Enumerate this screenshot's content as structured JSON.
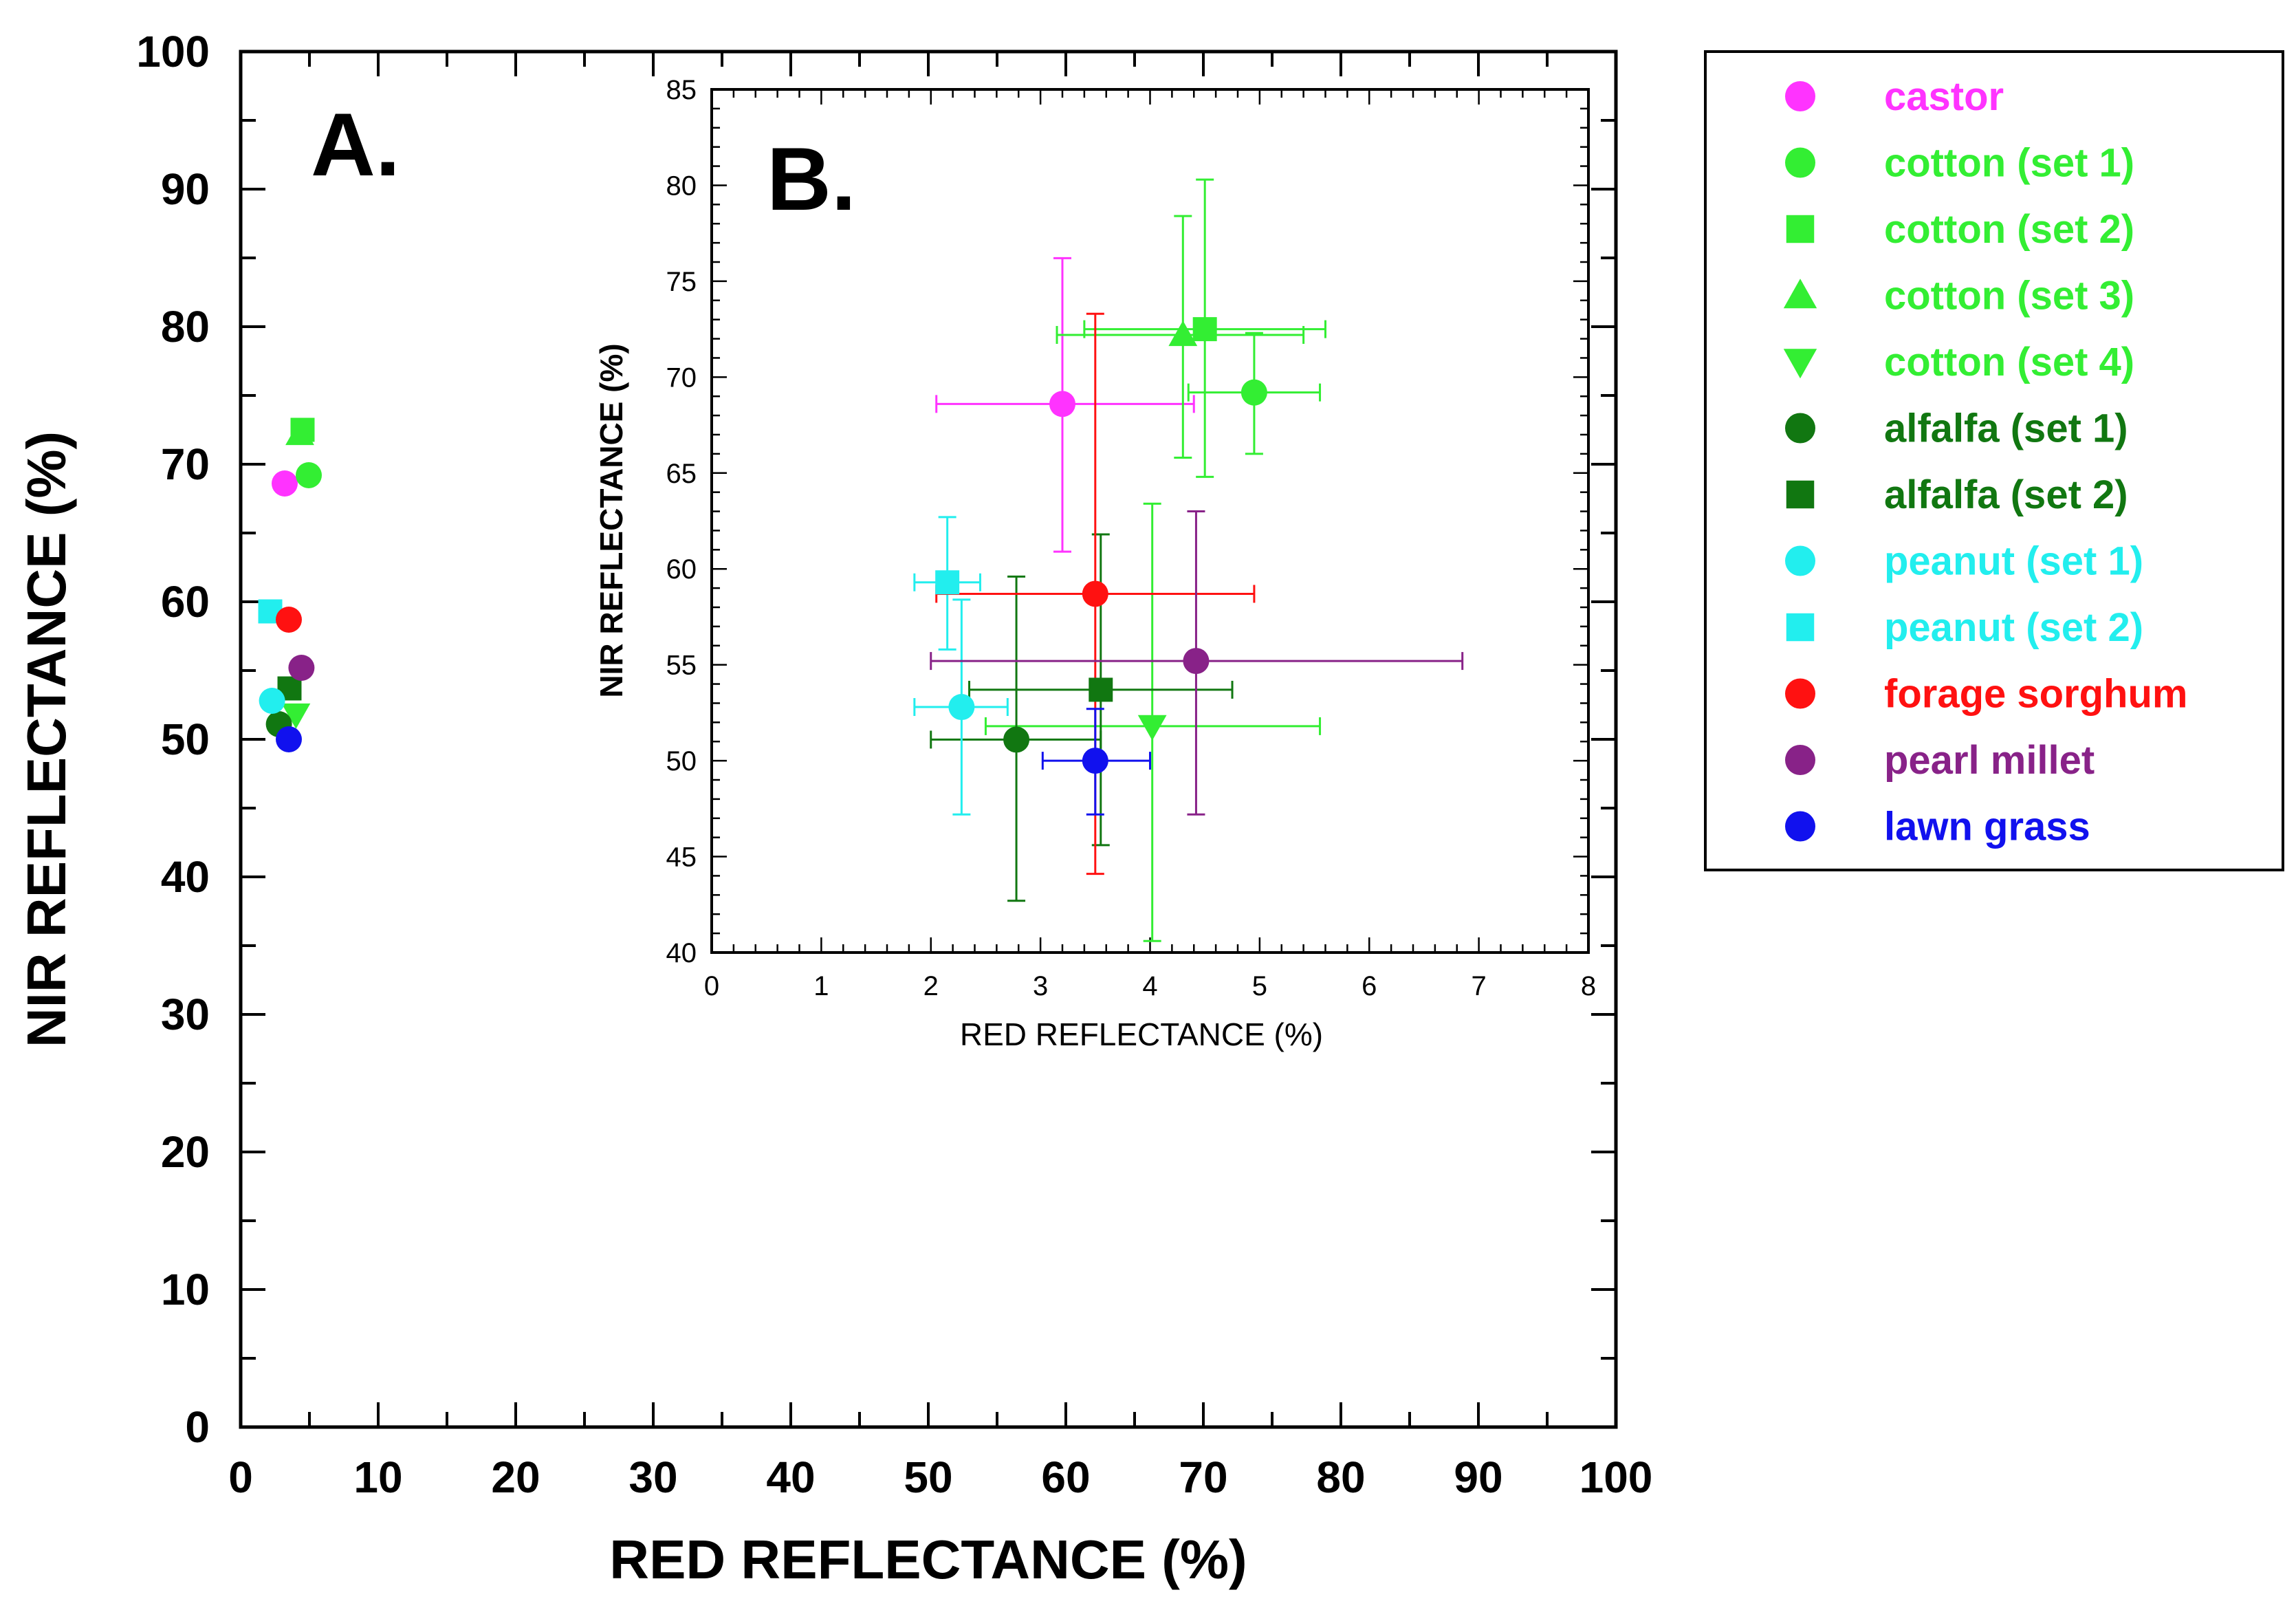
{
  "chart_data": [
    {
      "type": "scatter",
      "panel": "A.",
      "xlabel": "RED REFLECTANCE (%)",
      "ylabel": "NIR REFLECTANCE (%)",
      "xlim": [
        0,
        100
      ],
      "ylim": [
        0,
        100
      ],
      "xticks": [
        "0",
        "10",
        "20",
        "30",
        "40",
        "50",
        "60",
        "70",
        "80",
        "90",
        "100"
      ],
      "yticks": [
        "0",
        "10",
        "20",
        "30",
        "40",
        "50",
        "60",
        "70",
        "80",
        "90",
        "100"
      ]
    },
    {
      "type": "scatter",
      "panel": "B.",
      "xlabel": "RED REFLECTANCE (%)",
      "ylabel": "NIR REFLECTANCE (%)",
      "xlim": [
        0,
        8
      ],
      "ylim": [
        40,
        85
      ],
      "xticks": [
        "0",
        "1",
        "2",
        "3",
        "4",
        "5",
        "6",
        "7",
        "8"
      ],
      "yticks": [
        "40",
        "45",
        "50",
        "55",
        "60",
        "65",
        "70",
        "75",
        "80",
        "85"
      ],
      "error_bars": true
    }
  ],
  "series": [
    {
      "name": "castor",
      "marker": "circle",
      "color": "#ff33ff",
      "x": 3.2,
      "y": 68.6,
      "xerr": [
        2.05,
        4.4
      ],
      "yerr": [
        60.9,
        76.2
      ]
    },
    {
      "name": "cotton (set 1)",
      "marker": "circle",
      "color": "#33ee33",
      "x": 4.95,
      "y": 69.2,
      "xerr": [
        4.35,
        5.55
      ],
      "yerr": [
        66.0,
        72.3
      ]
    },
    {
      "name": "cotton (set 2)",
      "marker": "square",
      "color": "#33ee33",
      "x": 4.5,
      "y": 72.5,
      "xerr": [
        3.4,
        5.6
      ],
      "yerr": [
        64.8,
        80.3
      ]
    },
    {
      "name": "cotton (set 3)",
      "marker": "triangle-up",
      "color": "#33ee33",
      "x": 4.3,
      "y": 72.2,
      "xerr": [
        3.15,
        5.4
      ],
      "yerr": [
        65.8,
        78.4
      ]
    },
    {
      "name": "cotton (set 4)",
      "marker": "triangle-down",
      "color": "#33ee33",
      "x": 4.02,
      "y": 51.8,
      "xerr": [
        2.5,
        5.55
      ],
      "yerr": [
        40.6,
        63.4
      ]
    },
    {
      "name": "alfalfa (set 1)",
      "marker": "circle",
      "color": "#117711",
      "x": 2.78,
      "y": 51.1,
      "xerr": [
        2.0,
        3.55
      ],
      "yerr": [
        42.7,
        59.6
      ]
    },
    {
      "name": "alfalfa (set 2)",
      "marker": "square",
      "color": "#117711",
      "x": 3.55,
      "y": 53.7,
      "xerr": [
        2.35,
        4.75
      ],
      "yerr": [
        45.6,
        61.8
      ]
    },
    {
      "name": "peanut (set 1)",
      "marker": "circle",
      "color": "#22eeee",
      "x": 2.28,
      "y": 52.8,
      "xerr": [
        1.85,
        2.7
      ],
      "yerr": [
        47.2,
        58.4
      ]
    },
    {
      "name": "peanut (set 2)",
      "marker": "square",
      "color": "#22eeee",
      "x": 2.15,
      "y": 59.3,
      "xerr": [
        1.85,
        2.45
      ],
      "yerr": [
        55.8,
        62.7
      ]
    },
    {
      "name": "forage sorghum",
      "marker": "circle",
      "color": "#ff1111",
      "x": 3.5,
      "y": 58.7,
      "xerr": [
        2.05,
        4.95
      ],
      "yerr": [
        44.1,
        73.3
      ]
    },
    {
      "name": "pearl millet",
      "marker": "circle",
      "color": "#882288",
      "x": 4.42,
      "y": 55.2,
      "xerr": [
        2.0,
        6.85
      ],
      "yerr": [
        47.2,
        63.0
      ]
    },
    {
      "name": "lawn grass",
      "marker": "circle",
      "color": "#1111ee",
      "x": 3.5,
      "y": 50.0,
      "xerr": [
        3.02,
        4.0
      ],
      "yerr": [
        47.2,
        52.7
      ]
    }
  ]
}
